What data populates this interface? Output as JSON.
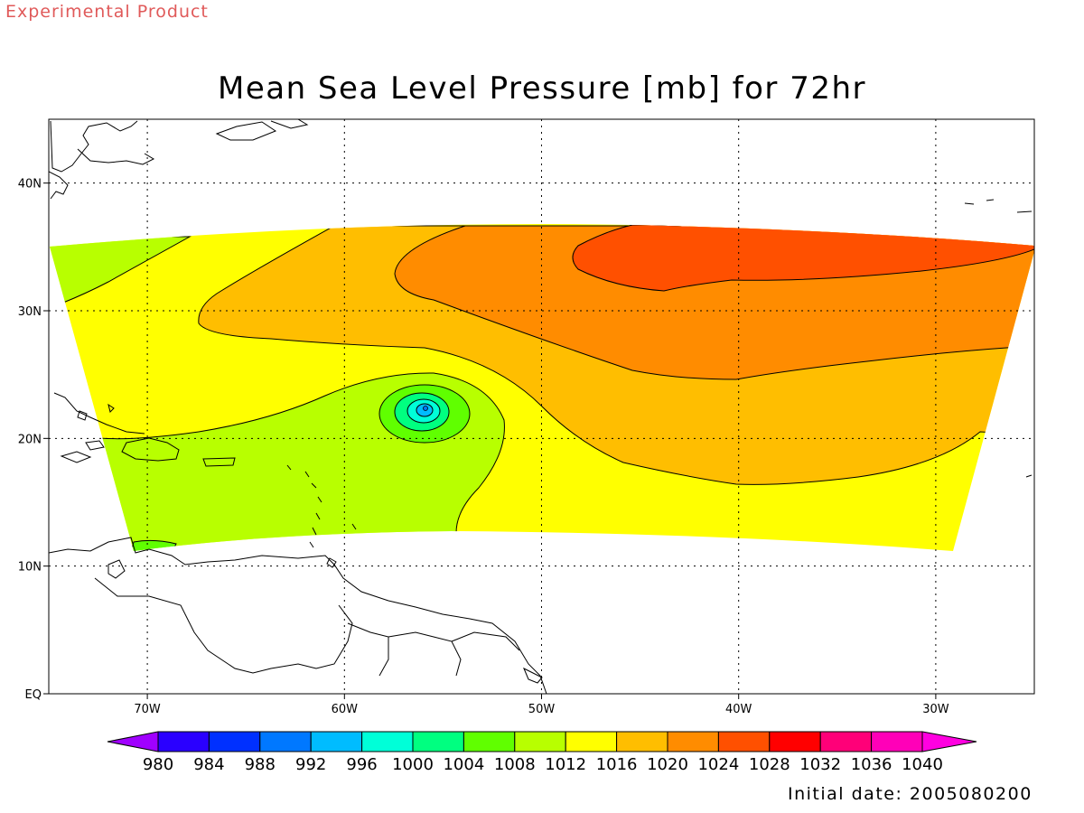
{
  "header": {
    "tag": "Experimental Product",
    "title": "Mean Sea Level Pressure [mb] for 72hr"
  },
  "footer": {
    "initial_date": "Initial date: 2005080200"
  },
  "map": {
    "lon_ticks": [
      "70W",
      "60W",
      "50W",
      "40W",
      "30W"
    ],
    "lat_ticks": [
      "40N",
      "30N",
      "20N",
      "10N",
      "EQ"
    ],
    "lon_values": [
      -70,
      -60,
      -50,
      -40,
      -30
    ],
    "lat_values": [
      40,
      30,
      20,
      10,
      0
    ],
    "lon_range": [
      -75,
      -25
    ],
    "lat_range": [
      0,
      45
    ],
    "grid": true
  },
  "colorbar": {
    "labels": [
      "980",
      "984",
      "988",
      "992",
      "996",
      "1000",
      "1004",
      "1008",
      "1012",
      "1016",
      "1020",
      "1024",
      "1028",
      "1032",
      "1036",
      "1040"
    ],
    "colors": [
      "#a000ff",
      "#2a00ff",
      "#0030ff",
      "#0078ff",
      "#00bcff",
      "#00ffd8",
      "#00ff80",
      "#60ff00",
      "#b8ff00",
      "#ffff00",
      "#ffbe00",
      "#ff8c00",
      "#ff5000",
      "#ff0000",
      "#ff0078",
      "#ff00b8",
      "#ff00e0"
    ]
  },
  "chart_data": {
    "type": "heatmap",
    "title": "Mean Sea Level Pressure [mb] for 72hr",
    "levels": [
      980,
      984,
      988,
      992,
      996,
      1000,
      1004,
      1008,
      1012,
      1016,
      1020,
      1024,
      1028,
      1032,
      1036,
      1040
    ],
    "fields": [
      {
        "label": "1016-1020",
        "color": "#ffbe00"
      },
      {
        "label": "1020-1024",
        "color": "#ff8c00"
      },
      {
        "label": "1024-1028",
        "color": "#ff5000"
      },
      {
        "label": "1008-1012",
        "color": "#b8ff00"
      },
      {
        "label": "1004-1008",
        "color": "#60ff00"
      },
      {
        "label": "1000-1004",
        "color": "#00ff80"
      },
      {
        "label": "996-1000",
        "color": "#00ffd8"
      },
      {
        "label": "992-996",
        "color": "#00bcff"
      }
    ],
    "low_center": {
      "lon": -56,
      "lat": 22.4,
      "min_pressure_range": "992-996"
    }
  }
}
